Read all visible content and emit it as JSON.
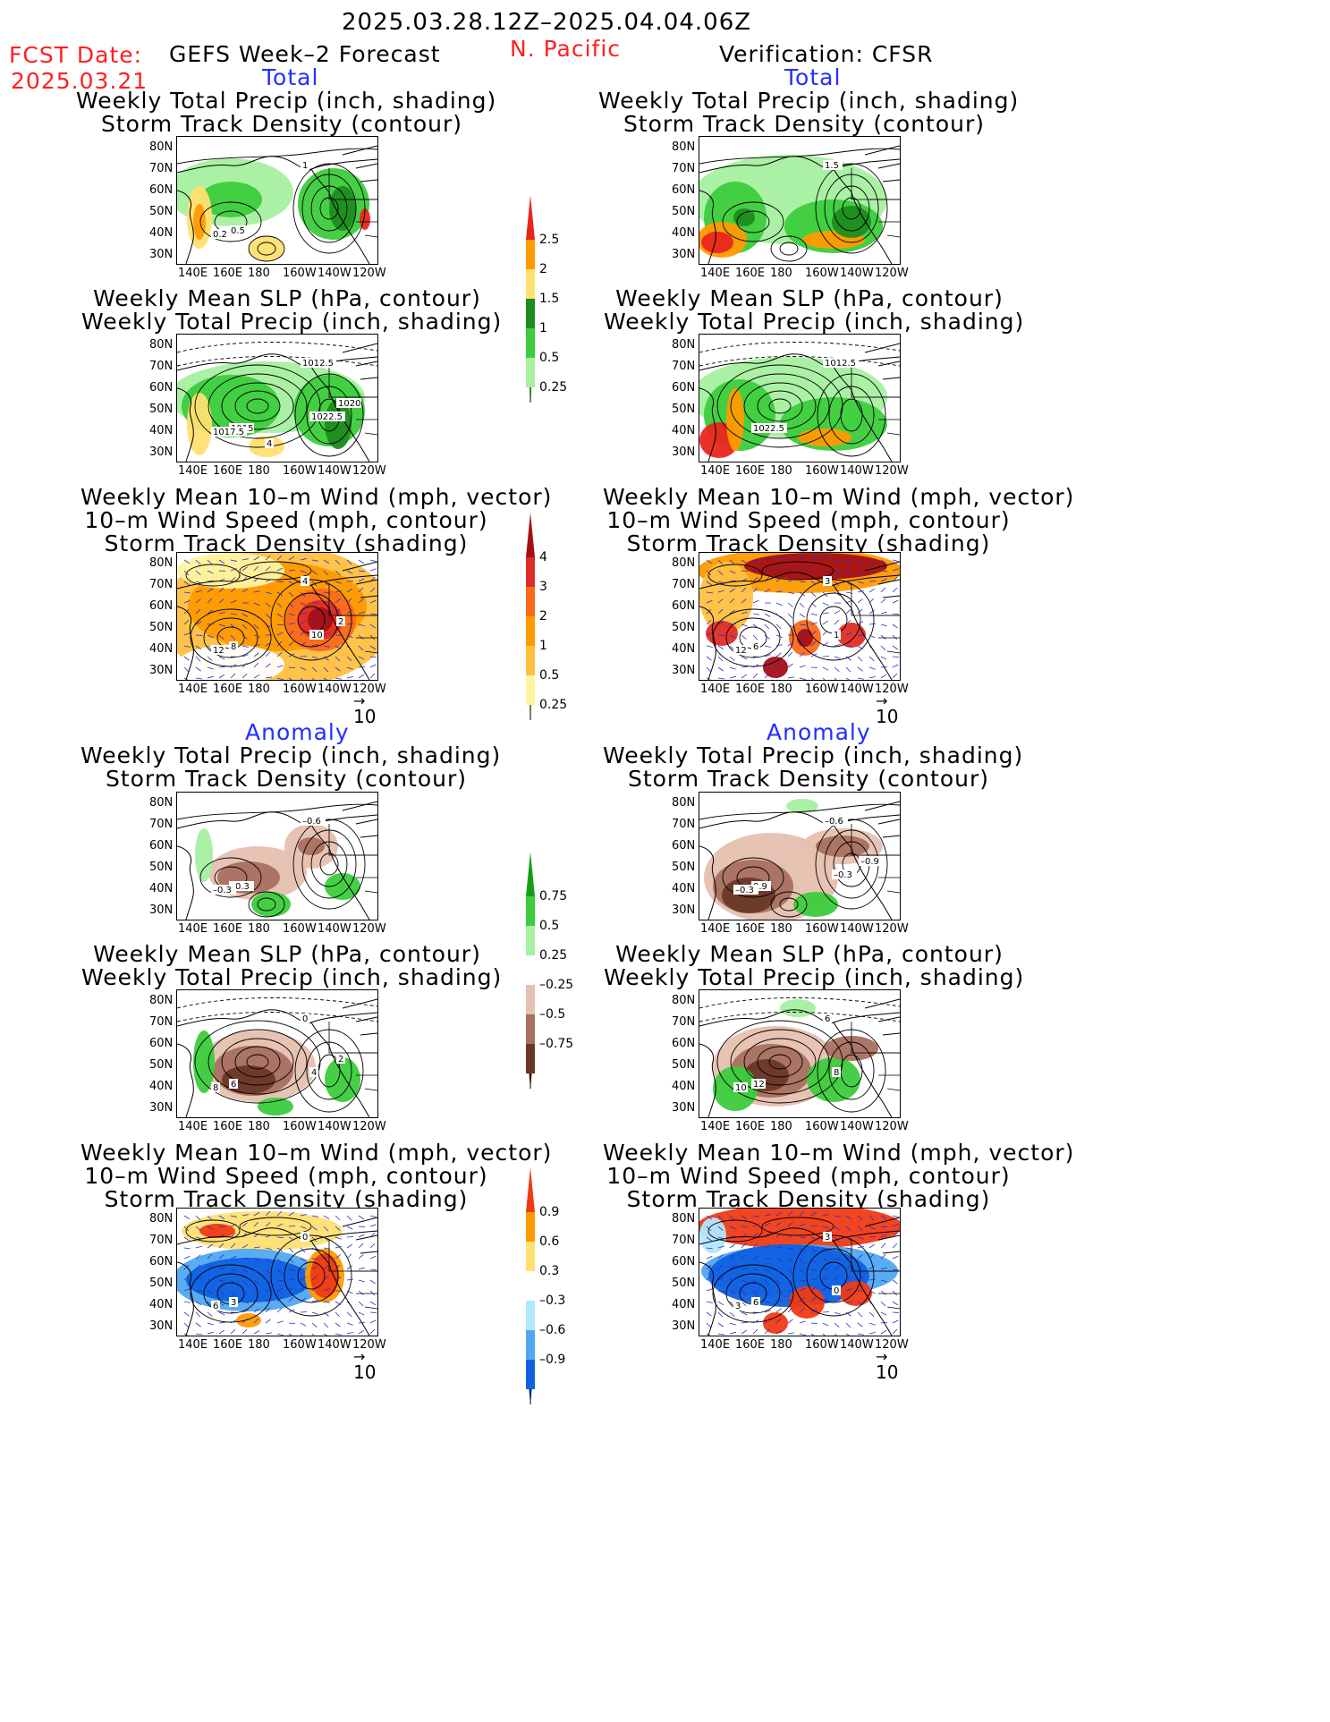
{
  "header": {
    "period": "2025.03.28.12Z–2025.04.04.06Z",
    "fcst_label": "FCST Date:",
    "fcst_date": "2025.03.21",
    "left_title": "GEFS Week–2 Forecast",
    "region": "N. Pacific",
    "right_title": "Verification: CFSR"
  },
  "sections": {
    "total": "Total",
    "anomaly": "Anomaly"
  },
  "panel_titles": {
    "precip_track": [
      "Weekly Total Precip (inch, shading)",
      "Storm Track Density (contour)"
    ],
    "slp_precip": [
      "Weekly Mean SLP (hPa, contour)",
      "Weekly Total Precip (inch, shading)"
    ],
    "wind_track": [
      "Weekly Mean 10–m Wind (mph, vector)",
      "10–m Wind Speed (mph, contour)",
      "Storm Track Density (shading)"
    ]
  },
  "axes": {
    "lat": [
      "80N",
      "70N",
      "60N",
      "50N",
      "40N",
      "30N"
    ],
    "lon": [
      "140E",
      "160E",
      "180",
      "160W",
      "140W",
      "120W"
    ]
  },
  "vector_ref": "10",
  "colorbars": {
    "precip_total": {
      "labels": [
        "2.5",
        "2",
        "1.5",
        "1",
        "0.5",
        "0.25"
      ],
      "colors": [
        "#e8261c",
        "#ff9a00",
        "#ffe070",
        "#1e8c1e",
        "#3ccc3c",
        "#a6f0a0"
      ]
    },
    "track_total": {
      "labels": [
        "4",
        "3",
        "2",
        "1",
        "0.5",
        "0.25"
      ],
      "colors": [
        "#a50f15",
        "#de2d26",
        "#fb6a1a",
        "#ff9a00",
        "#ffc040",
        "#fff4a0"
      ]
    },
    "precip_anom": {
      "labels": [
        "0.75",
        "0.5",
        "0.25",
        "–0.25",
        "–0.5",
        "–0.75"
      ],
      "colors": [
        "#12a012",
        "#3ccc3c",
        "#a6f0a0",
        "#ffffff",
        "#e6c0b0",
        "#a87060",
        "#6a3828"
      ]
    },
    "track_anom": {
      "labels": [
        "0.9",
        "0.6",
        "0.3",
        "–0.3",
        "–0.6",
        "–0.9"
      ],
      "colors": [
        "#f03a14",
        "#ff9a00",
        "#ffe070",
        "#ffffff",
        "#b0e8ff",
        "#50a8f0",
        "#1060e0"
      ]
    }
  },
  "contour_labels": {
    "f1": [
      "1",
      "0.5",
      "0.2"
    ],
    "v1": [
      "1.5"
    ],
    "f2": [
      "1012.5",
      "1015",
      "1017.5",
      "1022.5",
      "1020",
      "4"
    ],
    "v2": [
      "1012.5",
      "1022.5"
    ],
    "f3": [
      "4",
      "8",
      "12",
      "10",
      "2"
    ],
    "v3": [
      "3",
      "6",
      "12",
      "1"
    ],
    "f4": [
      "–0.6",
      "–0.3",
      "–0.3"
    ],
    "v4": [
      "–0.6",
      "0.9",
      "–0.3",
      "–0.3",
      "–0.9"
    ],
    "f5": [
      "0",
      "6",
      "8",
      "4",
      "2"
    ],
    "v5": [
      "6",
      "12",
      "10",
      "8"
    ],
    "f6": [
      "0",
      "3",
      "6"
    ],
    "v6": [
      "3",
      "6",
      "3",
      "0"
    ]
  }
}
